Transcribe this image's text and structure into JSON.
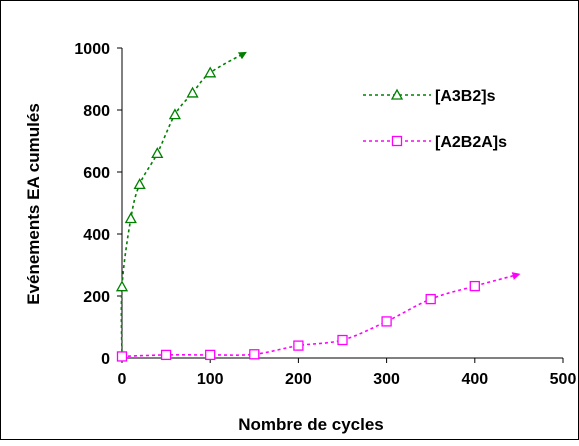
{
  "chart_data": {
    "type": "line",
    "title": "",
    "xlabel": "Nombre de cycles",
    "ylabel": "Evénements EA cumulés",
    "xlim": [
      0,
      500
    ],
    "ylim": [
      0,
      1000
    ],
    "xticks": [
      0,
      100,
      200,
      300,
      400,
      500
    ],
    "yticks": [
      0,
      200,
      400,
      600,
      800,
      1000
    ],
    "grid": false,
    "legend_position": "top-right",
    "series": [
      {
        "name": "[A3B2]s",
        "color": "#008000",
        "marker": "triangle",
        "line_style": "dotted",
        "points": [
          {
            "x": 0,
            "y": 0
          },
          {
            "x": 0,
            "y": 230
          },
          {
            "x": 10,
            "y": 450
          },
          {
            "x": 20,
            "y": 560
          },
          {
            "x": 40,
            "y": 660
          },
          {
            "x": 60,
            "y": 785
          },
          {
            "x": 80,
            "y": 855
          },
          {
            "x": 100,
            "y": 920
          }
        ],
        "trend_end": {
          "x": 140,
          "y": 985
        }
      },
      {
        "name": "[A2B2A]s",
        "color": "#ff00ff",
        "marker": "square",
        "line_style": "dotted",
        "points": [
          {
            "x": 0,
            "y": 5
          },
          {
            "x": 50,
            "y": 10
          },
          {
            "x": 100,
            "y": 10
          },
          {
            "x": 150,
            "y": 12
          },
          {
            "x": 200,
            "y": 40
          },
          {
            "x": 250,
            "y": 58
          },
          {
            "x": 300,
            "y": 118
          },
          {
            "x": 350,
            "y": 190
          },
          {
            "x": 400,
            "y": 232
          }
        ],
        "trend_end": {
          "x": 450,
          "y": 270
        }
      }
    ]
  }
}
